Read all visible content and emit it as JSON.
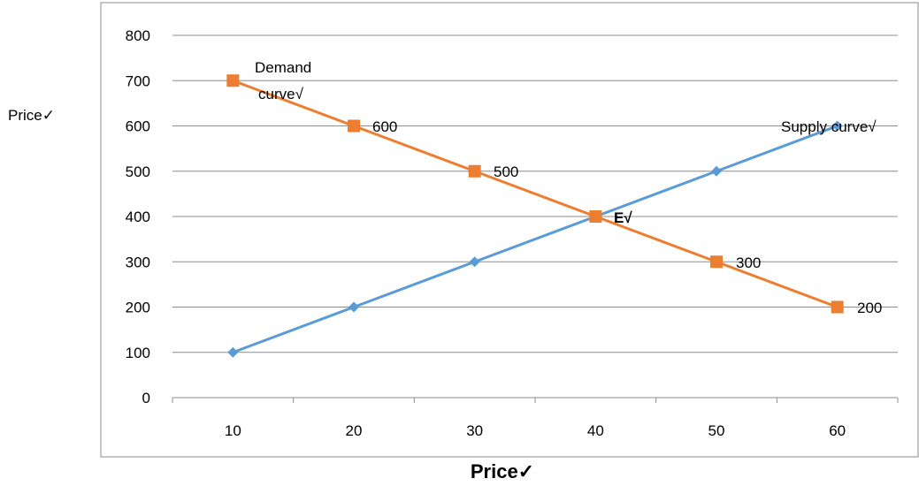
{
  "chart_data": {
    "type": "line",
    "title": "",
    "xlabel": "Price✓",
    "ylabel": "Price✓",
    "categories": [
      "10",
      "20",
      "30",
      "40",
      "50",
      "60"
    ],
    "ylim": [
      0,
      800
    ],
    "yticks": [
      "0",
      "100",
      "200",
      "300",
      "400",
      "500",
      "600",
      "700",
      "800"
    ],
    "grid": true,
    "legend": "none",
    "series": [
      {
        "key": "demand",
        "values": [
          700,
          600,
          500,
          400,
          300,
          200
        ],
        "color": "#ed7d31",
        "marker": "square"
      },
      {
        "key": "supply",
        "values": [
          100,
          200,
          300,
          400,
          500,
          600
        ],
        "color": "#5b9bd5",
        "marker": "diamond"
      }
    ],
    "annotations": {
      "demand_line1": "Demand",
      "demand_line2": "curve√",
      "supply": "Supply curve√",
      "equilibrium": "E√",
      "v600": "600",
      "v500": "500",
      "v300": "300",
      "v200": "200"
    }
  }
}
